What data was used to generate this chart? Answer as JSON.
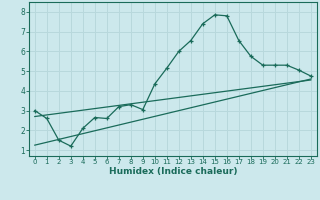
{
  "title": "",
  "xlabel": "Humidex (Indice chaleur)",
  "bg_color": "#cce8ec",
  "grid_color": "#b8d8dc",
  "line_color": "#1a6b5a",
  "xlim": [
    -0.5,
    23.5
  ],
  "ylim": [
    0.7,
    8.5
  ],
  "xticks": [
    0,
    1,
    2,
    3,
    4,
    5,
    6,
    7,
    8,
    9,
    10,
    11,
    12,
    13,
    14,
    15,
    16,
    17,
    18,
    19,
    20,
    21,
    22,
    23
  ],
  "yticks": [
    1,
    2,
    3,
    4,
    5,
    6,
    7,
    8
  ],
  "main_x": [
    0,
    1,
    2,
    3,
    4,
    5,
    6,
    7,
    8,
    9,
    10,
    11,
    12,
    13,
    14,
    15,
    16,
    17,
    18,
    19,
    20,
    21,
    22,
    23
  ],
  "main_y": [
    3.0,
    2.6,
    1.5,
    1.2,
    2.1,
    2.65,
    2.6,
    3.2,
    3.3,
    3.05,
    4.35,
    5.15,
    6.0,
    6.55,
    7.4,
    7.85,
    7.8,
    6.55,
    5.75,
    5.3,
    5.3,
    5.3,
    5.05,
    4.75
  ],
  "trend1_x": [
    0,
    23
  ],
  "trend1_y": [
    2.7,
    4.55
  ],
  "trend2_x": [
    0,
    23
  ],
  "trend2_y": [
    1.25,
    4.6
  ],
  "marker_x": [
    0,
    1,
    2,
    3,
    4,
    5,
    6,
    7,
    8,
    9,
    10,
    11,
    12,
    13,
    14,
    15,
    16,
    17,
    18,
    19,
    20,
    21,
    22,
    23
  ],
  "marker_y": [
    3.0,
    2.6,
    1.5,
    1.2,
    2.1,
    2.65,
    2.6,
    3.2,
    3.3,
    3.05,
    4.35,
    5.15,
    6.0,
    6.55,
    7.4,
    7.85,
    7.8,
    6.55,
    5.75,
    5.3,
    5.3,
    5.3,
    5.05,
    4.75
  ]
}
